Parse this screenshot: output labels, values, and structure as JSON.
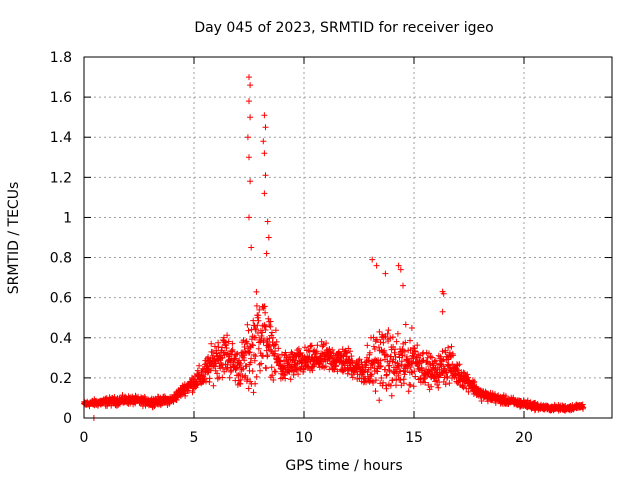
{
  "chart_data": {
    "type": "scatter",
    "title": "Day 045 of 2023, SRMTID for receiver igeo",
    "xlabel": "GPS time / hours",
    "ylabel": "SRMTID / TECUs",
    "xlim": [
      0,
      24
    ],
    "ylim": [
      0,
      1.8
    ],
    "x_ticks": [
      0,
      5,
      10,
      15,
      20
    ],
    "x_tick_labels": [
      "0",
      "5",
      "10",
      "15",
      "20"
    ],
    "y_ticks": [
      0,
      0.2,
      0.4,
      0.6,
      0.8,
      1.0,
      1.2,
      1.4,
      1.6,
      1.8
    ],
    "y_tick_labels": [
      "0",
      "0.2",
      "0.4",
      "0.6",
      "0.8",
      "1",
      "1.2",
      "1.4",
      "1.6",
      "1.8"
    ],
    "grid": true,
    "marker": "+",
    "series": [
      {
        "name": "SRMTID",
        "color": "#ff0000",
        "envelope": {
          "x": [
            0,
            1,
            2,
            3,
            4,
            4.5,
            5,
            5.5,
            6,
            6.5,
            7,
            7.5,
            8,
            8.5,
            9,
            10,
            11,
            12,
            12.5,
            13,
            13.5,
            14,
            14.5,
            15,
            15.5,
            16,
            16.5,
            17,
            17.5,
            18,
            19,
            20,
            21,
            22,
            22.7
          ],
          "center": [
            0.07,
            0.08,
            0.09,
            0.08,
            0.09,
            0.14,
            0.18,
            0.22,
            0.3,
            0.32,
            0.25,
            0.3,
            0.45,
            0.35,
            0.25,
            0.28,
            0.3,
            0.28,
            0.24,
            0.25,
            0.3,
            0.27,
            0.26,
            0.3,
            0.25,
            0.22,
            0.28,
            0.22,
            0.18,
            0.12,
            0.09,
            0.07,
            0.05,
            0.05,
            0.06
          ],
          "spread": [
            0.02,
            0.03,
            0.03,
            0.03,
            0.03,
            0.04,
            0.06,
            0.1,
            0.15,
            0.16,
            0.12,
            0.25,
            0.35,
            0.18,
            0.12,
            0.1,
            0.1,
            0.1,
            0.08,
            0.2,
            0.25,
            0.2,
            0.25,
            0.18,
            0.12,
            0.1,
            0.15,
            0.08,
            0.06,
            0.04,
            0.03,
            0.03,
            0.02,
            0.02,
            0.02
          ]
        },
        "highlights": [
          {
            "x": 7.5,
            "y": 1.7
          },
          {
            "x": 7.55,
            "y": 1.66
          },
          {
            "x": 7.5,
            "y": 1.58
          },
          {
            "x": 7.55,
            "y": 1.5
          },
          {
            "x": 7.45,
            "y": 1.4
          },
          {
            "x": 7.5,
            "y": 1.3
          },
          {
            "x": 7.55,
            "y": 1.18
          },
          {
            "x": 7.5,
            "y": 1.0
          },
          {
            "x": 7.6,
            "y": 0.85
          },
          {
            "x": 8.2,
            "y": 1.51
          },
          {
            "x": 8.25,
            "y": 1.45
          },
          {
            "x": 8.15,
            "y": 1.38
          },
          {
            "x": 8.2,
            "y": 1.32
          },
          {
            "x": 8.25,
            "y": 1.21
          },
          {
            "x": 8.2,
            "y": 1.12
          },
          {
            "x": 8.35,
            "y": 0.98
          },
          {
            "x": 8.4,
            "y": 0.9
          },
          {
            "x": 8.3,
            "y": 0.82
          },
          {
            "x": 13.1,
            "y": 0.79
          },
          {
            "x": 13.3,
            "y": 0.76
          },
          {
            "x": 13.7,
            "y": 0.72
          },
          {
            "x": 14.3,
            "y": 0.76
          },
          {
            "x": 14.4,
            "y": 0.74
          },
          {
            "x": 14.5,
            "y": 0.66
          },
          {
            "x": 16.3,
            "y": 0.63
          },
          {
            "x": 16.35,
            "y": 0.62
          },
          {
            "x": 16.3,
            "y": 0.53
          },
          {
            "x": 0.45,
            "y": 0.0
          }
        ]
      }
    ]
  }
}
